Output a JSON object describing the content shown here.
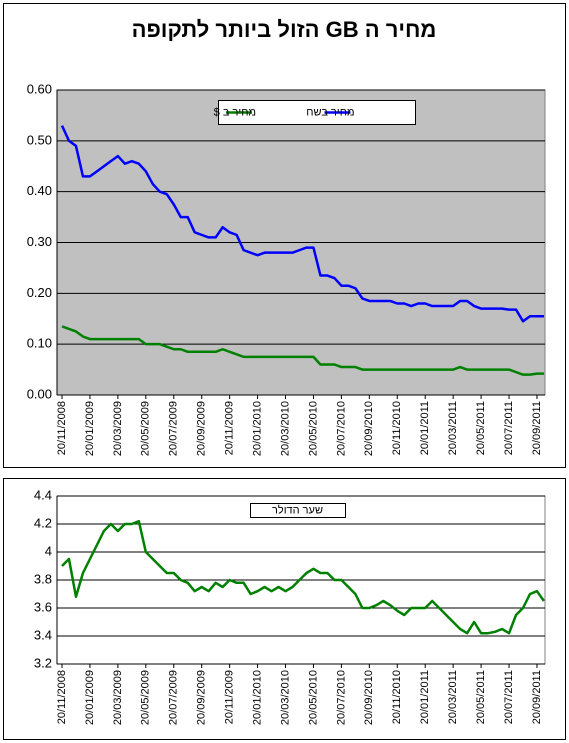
{
  "chart_data": [
    {
      "type": "line",
      "title": "מחיר ה GB הזול ביותר לתקופה",
      "categories": [
        "20/11/2008",
        null,
        null,
        null,
        "20/01/2009",
        null,
        null,
        null,
        "20/03/2009",
        null,
        null,
        null,
        "20/05/2009",
        null,
        null,
        null,
        "20/07/2009",
        null,
        null,
        null,
        "20/09/2009",
        null,
        null,
        null,
        "20/11/2009",
        null,
        null,
        null,
        "20/01/2010",
        null,
        null,
        null,
        "20/03/2010",
        null,
        null,
        null,
        "20/05/2010",
        null,
        null,
        null,
        "20/07/2010",
        null,
        null,
        null,
        "20/09/2010",
        null,
        null,
        null,
        "20/11/2010",
        null,
        null,
        null,
        "20/01/2011",
        null,
        null,
        null,
        "20/03/2011",
        null,
        null,
        null,
        "20/05/2011",
        null,
        null,
        null,
        "20/07/2011",
        null,
        null,
        null,
        "20/09/2011",
        null
      ],
      "series": [
        {
          "name": "מחיר ב $",
          "color": "#008000",
          "values": [
            0.135,
            0.13,
            0.125,
            0.115,
            0.11,
            0.11,
            0.11,
            0.11,
            0.11,
            0.11,
            0.11,
            0.11,
            0.1,
            0.1,
            0.1,
            0.095,
            0.09,
            0.09,
            0.085,
            0.085,
            0.085,
            0.085,
            0.085,
            0.09,
            0.085,
            0.08,
            0.075,
            0.075,
            0.075,
            0.075,
            0.075,
            0.075,
            0.075,
            0.075,
            0.075,
            0.075,
            0.075,
            0.06,
            0.06,
            0.06,
            0.055,
            0.055,
            0.055,
            0.05,
            0.05,
            0.05,
            0.05,
            0.05,
            0.05,
            0.05,
            0.05,
            0.05,
            0.05,
            0.05,
            0.05,
            0.05,
            0.05,
            0.055,
            0.05,
            0.05,
            0.05,
            0.05,
            0.05,
            0.05,
            0.05,
            0.045,
            0.04,
            0.04,
            0.042,
            0.042
          ]
        },
        {
          "name": "מחיר בשח",
          "color": "#0000ff",
          "values": [
            0.53,
            0.5,
            0.49,
            0.43,
            0.43,
            0.44,
            0.45,
            0.46,
            0.47,
            0.455,
            0.46,
            0.455,
            0.44,
            0.415,
            0.4,
            0.395,
            0.375,
            0.35,
            0.35,
            0.32,
            0.315,
            0.31,
            0.31,
            0.33,
            0.32,
            0.315,
            0.285,
            0.28,
            0.275,
            0.28,
            0.28,
            0.28,
            0.28,
            0.28,
            0.285,
            0.29,
            0.29,
            0.235,
            0.235,
            0.23,
            0.215,
            0.215,
            0.21,
            0.19,
            0.185,
            0.185,
            0.185,
            0.185,
            0.18,
            0.18,
            0.175,
            0.18,
            0.18,
            0.175,
            0.175,
            0.175,
            0.175,
            0.185,
            0.185,
            0.175,
            0.17,
            0.17,
            0.17,
            0.17,
            0.168,
            0.168,
            0.145,
            0.155,
            0.155,
            0.155
          ]
        }
      ],
      "ylim": [
        0,
        0.6
      ],
      "yticks": [
        {
          "value": 0,
          "label": "0.00"
        },
        {
          "value": 0.1,
          "label": "0.10"
        },
        {
          "value": 0.2,
          "label": "0.20"
        },
        {
          "value": 0.3,
          "label": "0.30"
        },
        {
          "value": 0.4,
          "label": "0.40"
        },
        {
          "value": 0.5,
          "label": "0.50"
        },
        {
          "value": 0.6,
          "label": "0.60"
        }
      ],
      "grid": true,
      "plot_background": "#c0c0c0",
      "legend": "top",
      "legend_marker": true
    },
    {
      "type": "line",
      "categories": [
        "20/11/2008",
        null,
        null,
        null,
        "20/01/2009",
        null,
        null,
        null,
        "20/03/2009",
        null,
        null,
        null,
        "20/05/2009",
        null,
        null,
        null,
        "20/07/2009",
        null,
        null,
        null,
        "20/09/2009",
        null,
        null,
        null,
        "20/11/2009",
        null,
        null,
        null,
        "20/01/2010",
        null,
        null,
        null,
        "20/03/2010",
        null,
        null,
        null,
        "20/05/2010",
        null,
        null,
        null,
        "20/07/2010",
        null,
        null,
        null,
        "20/09/2010",
        null,
        null,
        null,
        "20/11/2010",
        null,
        null,
        null,
        "20/01/2011",
        null,
        null,
        null,
        "20/03/2011",
        null,
        null,
        null,
        "20/05/2011",
        null,
        null,
        null,
        "20/07/2011",
        null,
        null,
        null,
        "20/09/2011",
        null
      ],
      "series": [
        {
          "name": "שער הדולר",
          "color": "#008000",
          "values": [
            3.9,
            3.95,
            3.68,
            3.85,
            3.95,
            4.05,
            4.15,
            4.2,
            4.15,
            4.2,
            4.2,
            4.22,
            4.0,
            3.95,
            3.9,
            3.85,
            3.85,
            3.8,
            3.78,
            3.72,
            3.75,
            3.72,
            3.78,
            3.75,
            3.8,
            3.78,
            3.78,
            3.7,
            3.72,
            3.75,
            3.72,
            3.75,
            3.72,
            3.75,
            3.8,
            3.85,
            3.88,
            3.85,
            3.85,
            3.8,
            3.8,
            3.75,
            3.7,
            3.6,
            3.6,
            3.62,
            3.65,
            3.62,
            3.58,
            3.55,
            3.6,
            3.6,
            3.6,
            3.65,
            3.6,
            3.55,
            3.5,
            3.45,
            3.42,
            3.5,
            3.42,
            3.42,
            3.43,
            3.45,
            3.42,
            3.55,
            3.6,
            3.7,
            3.72,
            3.65
          ]
        }
      ],
      "ylim": [
        3.2,
        4.4
      ],
      "yticks": [
        3.2,
        3.4,
        3.6,
        3.8,
        4,
        4.2,
        4.4
      ],
      "grid": true,
      "plot_background": "#ffffff",
      "legend": "top",
      "legend_marker": false
    }
  ]
}
